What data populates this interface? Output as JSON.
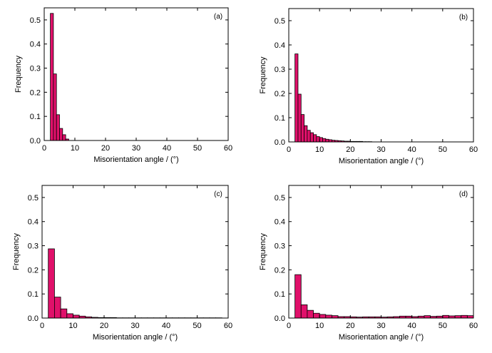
{
  "figure": {
    "bar_color": "#e0106a",
    "edge_color": "#000000"
  },
  "chart_data": [
    {
      "type": "bar",
      "panel_label": "(a)",
      "xlabel": "Misorientation angle / (°)",
      "ylabel": "Frequency",
      "xlim": [
        0,
        60
      ],
      "ylim": [
        0,
        0.55
      ],
      "xticks": [
        0,
        10,
        20,
        30,
        40,
        50,
        60
      ],
      "yticks": [
        0,
        0.1,
        0.2,
        0.3,
        0.4,
        0.5
      ],
      "bin_width": 1,
      "x": [
        2,
        3,
        4,
        5,
        6,
        7
      ],
      "values": [
        0.527,
        0.276,
        0.107,
        0.05,
        0.024,
        0.006
      ],
      "grid": false
    },
    {
      "type": "bar",
      "panel_label": "(b)",
      "xlabel": "Misorientation angle / (°)",
      "ylabel": "Frequency",
      "xlim": [
        0,
        60
      ],
      "ylim": [
        0,
        0.55
      ],
      "xticks": [
        0,
        10,
        20,
        30,
        40,
        50,
        60
      ],
      "yticks": [
        0,
        0.1,
        0.2,
        0.3,
        0.4,
        0.5
      ],
      "bin_width": 1,
      "x": [
        2,
        3,
        4,
        5,
        6,
        7,
        8,
        9,
        10,
        11,
        12,
        13,
        14,
        15,
        16,
        17,
        18,
        19,
        20,
        21,
        22,
        23,
        24,
        25,
        26
      ],
      "values": [
        0.363,
        0.197,
        0.113,
        0.067,
        0.048,
        0.038,
        0.03,
        0.022,
        0.018,
        0.014,
        0.011,
        0.009,
        0.007,
        0.006,
        0.005,
        0.004,
        0.003,
        0.003,
        0.002,
        0.002,
        0.002,
        0.002,
        0.001,
        0.001,
        0.001
      ],
      "grid": false
    },
    {
      "type": "bar",
      "panel_label": "(c)",
      "xlabel": "Misorientation angle / (°)",
      "ylabel": "Frequency",
      "xlim": [
        0,
        60
      ],
      "ylim": [
        0,
        0.55
      ],
      "xticks": [
        0,
        10,
        20,
        30,
        40,
        50,
        60
      ],
      "yticks": [
        0,
        0.1,
        0.2,
        0.3,
        0.4,
        0.5
      ],
      "bin_width": 2,
      "x": [
        2,
        4,
        6,
        8,
        10,
        12,
        14,
        16,
        18,
        20,
        22,
        24,
        26,
        28,
        30,
        32,
        34,
        36,
        38,
        40,
        42,
        44,
        46,
        48,
        50,
        52,
        54,
        56
      ],
      "values": [
        0.287,
        0.087,
        0.038,
        0.018,
        0.012,
        0.008,
        0.005,
        0.003,
        0.002,
        0.002,
        0.002,
        0.001,
        0.001,
        0.001,
        0.001,
        0.001,
        0.001,
        0.001,
        0.001,
        0.001,
        0.001,
        0.001,
        0.001,
        0.001,
        0.001,
        0.001,
        0.001,
        0.001
      ],
      "grid": false
    },
    {
      "type": "bar",
      "panel_label": "(d)",
      "xlabel": "Misorientation angle / (°)",
      "ylabel": "Frequency",
      "xlim": [
        0,
        60
      ],
      "ylim": [
        0,
        0.55
      ],
      "xticks": [
        0,
        10,
        20,
        30,
        40,
        50,
        60
      ],
      "yticks": [
        0,
        0.1,
        0.2,
        0.3,
        0.4,
        0.5
      ],
      "bin_width": 2,
      "x": [
        2,
        4,
        6,
        8,
        10,
        12,
        14,
        16,
        18,
        20,
        22,
        24,
        26,
        28,
        30,
        32,
        34,
        36,
        38,
        40,
        42,
        44,
        46,
        48,
        50,
        52,
        54,
        56,
        58
      ],
      "values": [
        0.18,
        0.055,
        0.032,
        0.02,
        0.015,
        0.012,
        0.01,
        0.006,
        0.006,
        0.005,
        0.004,
        0.005,
        0.005,
        0.005,
        0.004,
        0.005,
        0.006,
        0.008,
        0.008,
        0.006,
        0.008,
        0.01,
        0.007,
        0.008,
        0.011,
        0.009,
        0.01,
        0.011,
        0.01
      ],
      "grid": false
    }
  ]
}
